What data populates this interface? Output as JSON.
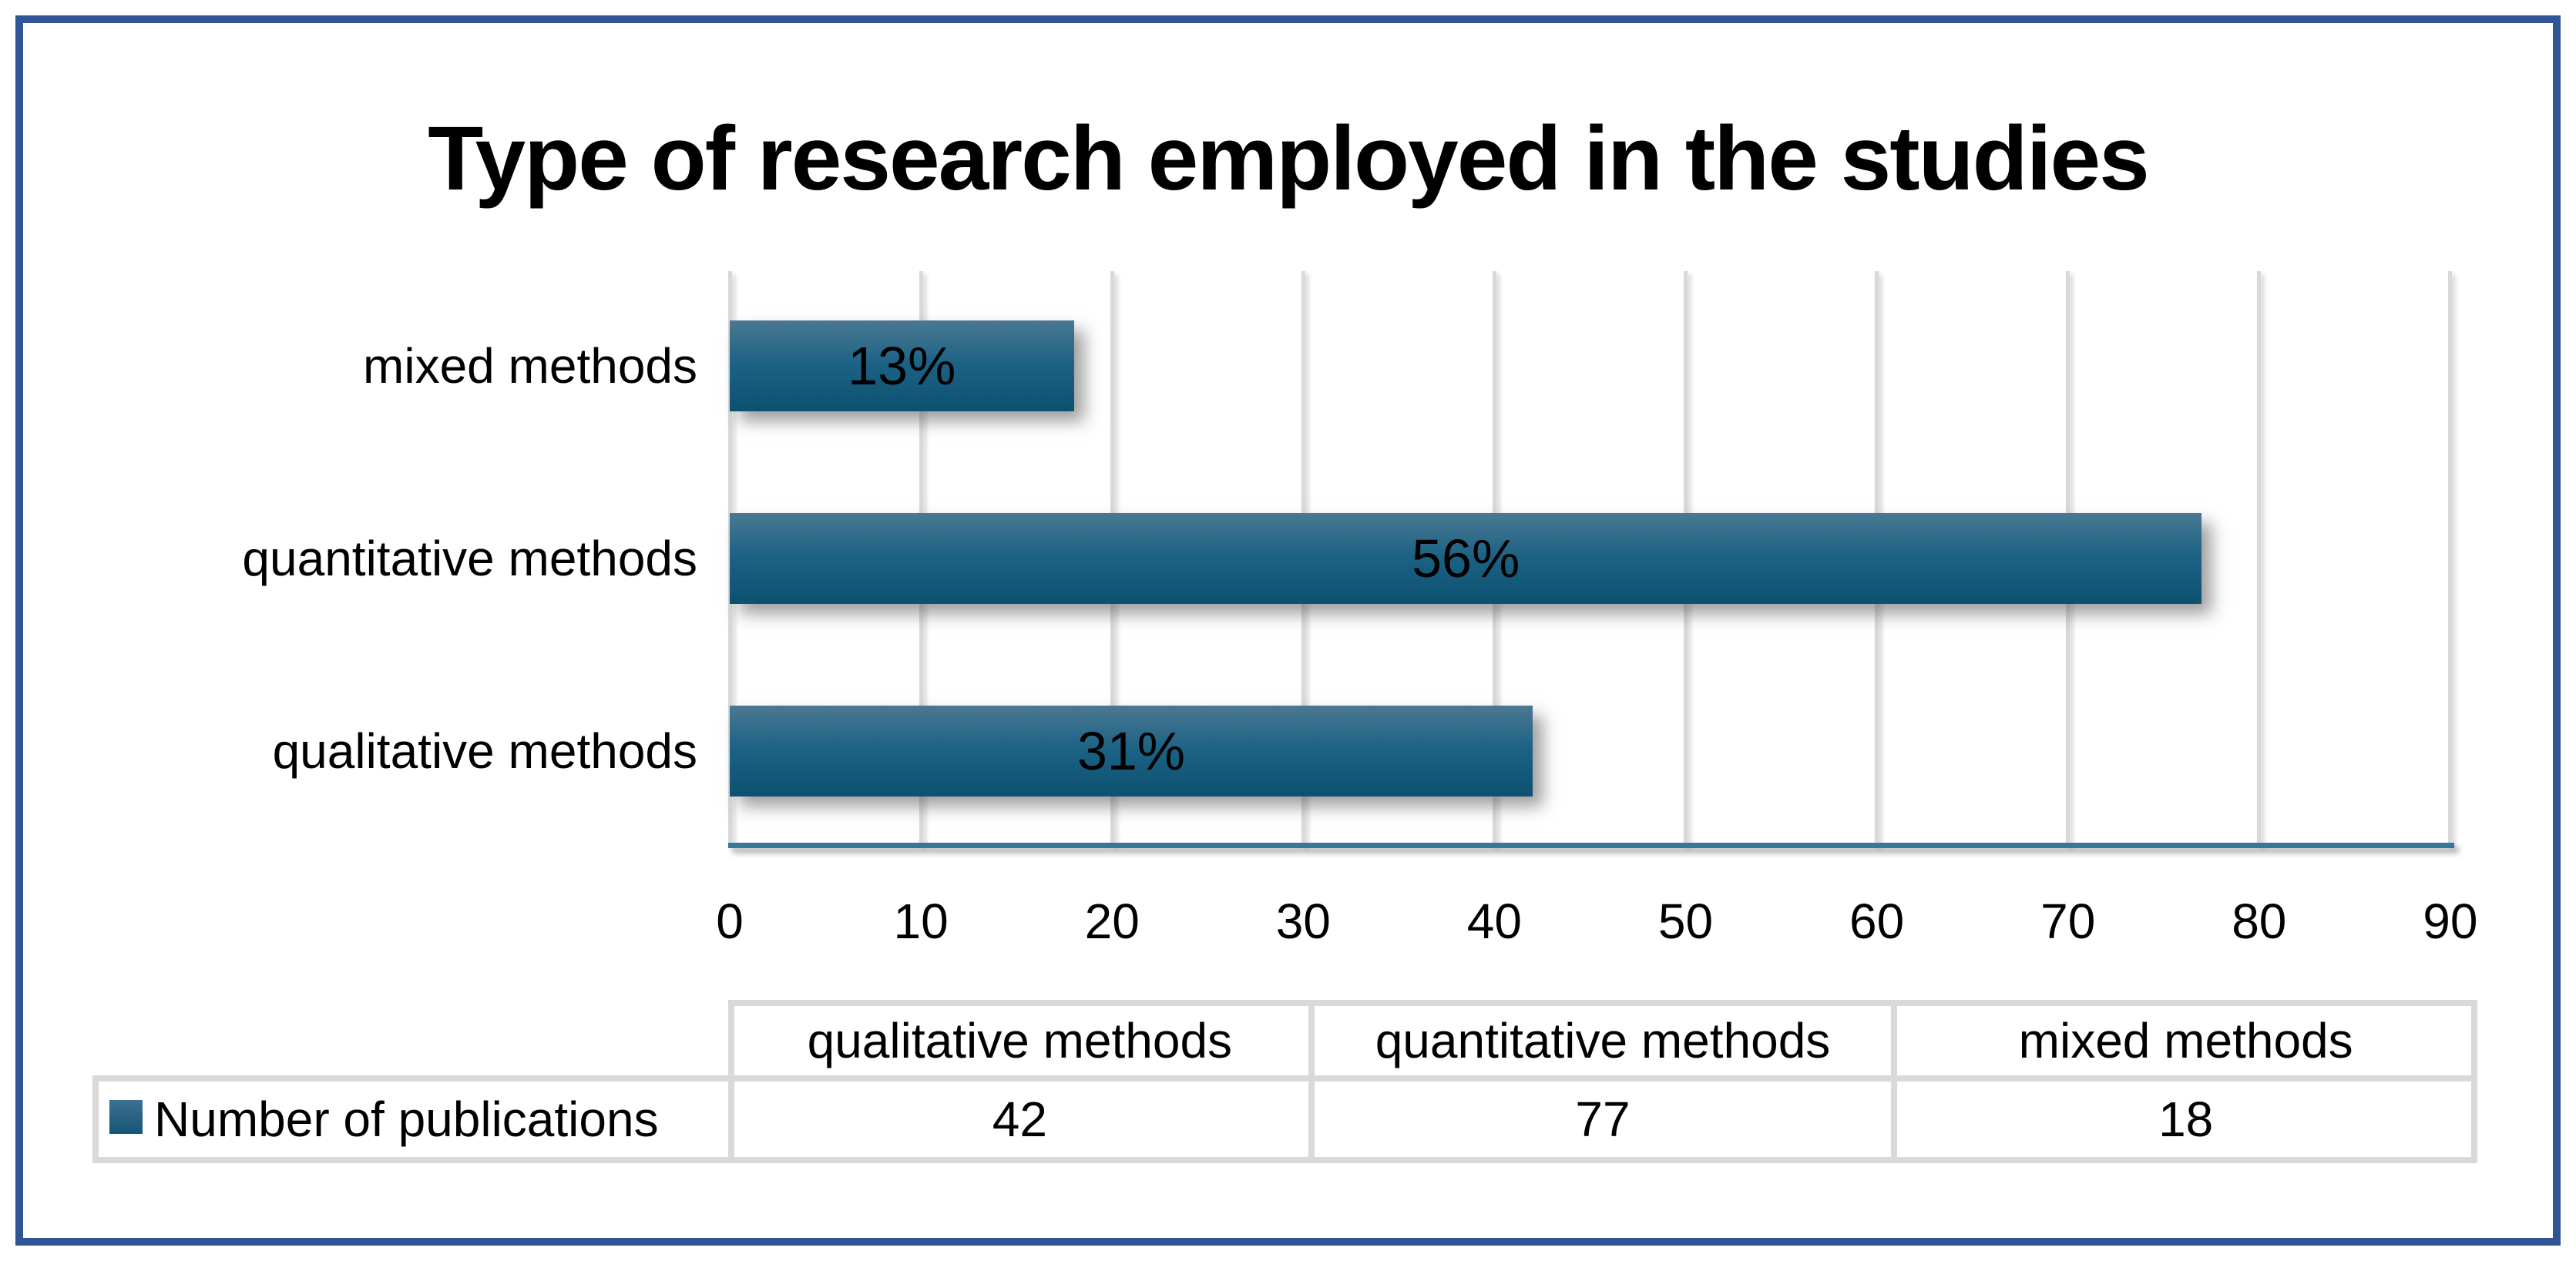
{
  "chart_data": {
    "type": "bar",
    "orientation": "horizontal",
    "title": "Type of research employed in the studies",
    "categories": [
      "qualitative methods",
      "quantitative methods",
      "mixed methods"
    ],
    "series": [
      {
        "name": "Number of publications",
        "values": [
          42,
          77,
          18
        ]
      }
    ],
    "data_labels": [
      "31%",
      "56%",
      "13%"
    ],
    "display_order_top_to_bottom": [
      2,
      1,
      0
    ],
    "xlabel": "",
    "ylabel": "",
    "xlim": [
      0,
      90
    ],
    "x_ticks": [
      "0",
      "10",
      "20",
      "30",
      "40",
      "50",
      "60",
      "70",
      "80",
      "90"
    ],
    "grid": true,
    "legend_position": "data-table-left",
    "colors": {
      "bar_gradient_top": "#4B7893",
      "bar_gradient_mid": "#1C6285",
      "bar_gradient_bottom": "#0D5170",
      "axis_line": "#35799A",
      "gridline": "#D9D9D9",
      "frame_border": "#2F5597",
      "table_border": "#D9D9D9",
      "text": "#000000"
    }
  },
  "data_table": {
    "column_headers": [
      "qualitative methods",
      "quantitative methods",
      "mixed methods"
    ],
    "rows": [
      {
        "label": "Number of publications",
        "legend_key": "series-color-swatch",
        "values": [
          "42",
          "77",
          "18"
        ]
      }
    ]
  }
}
